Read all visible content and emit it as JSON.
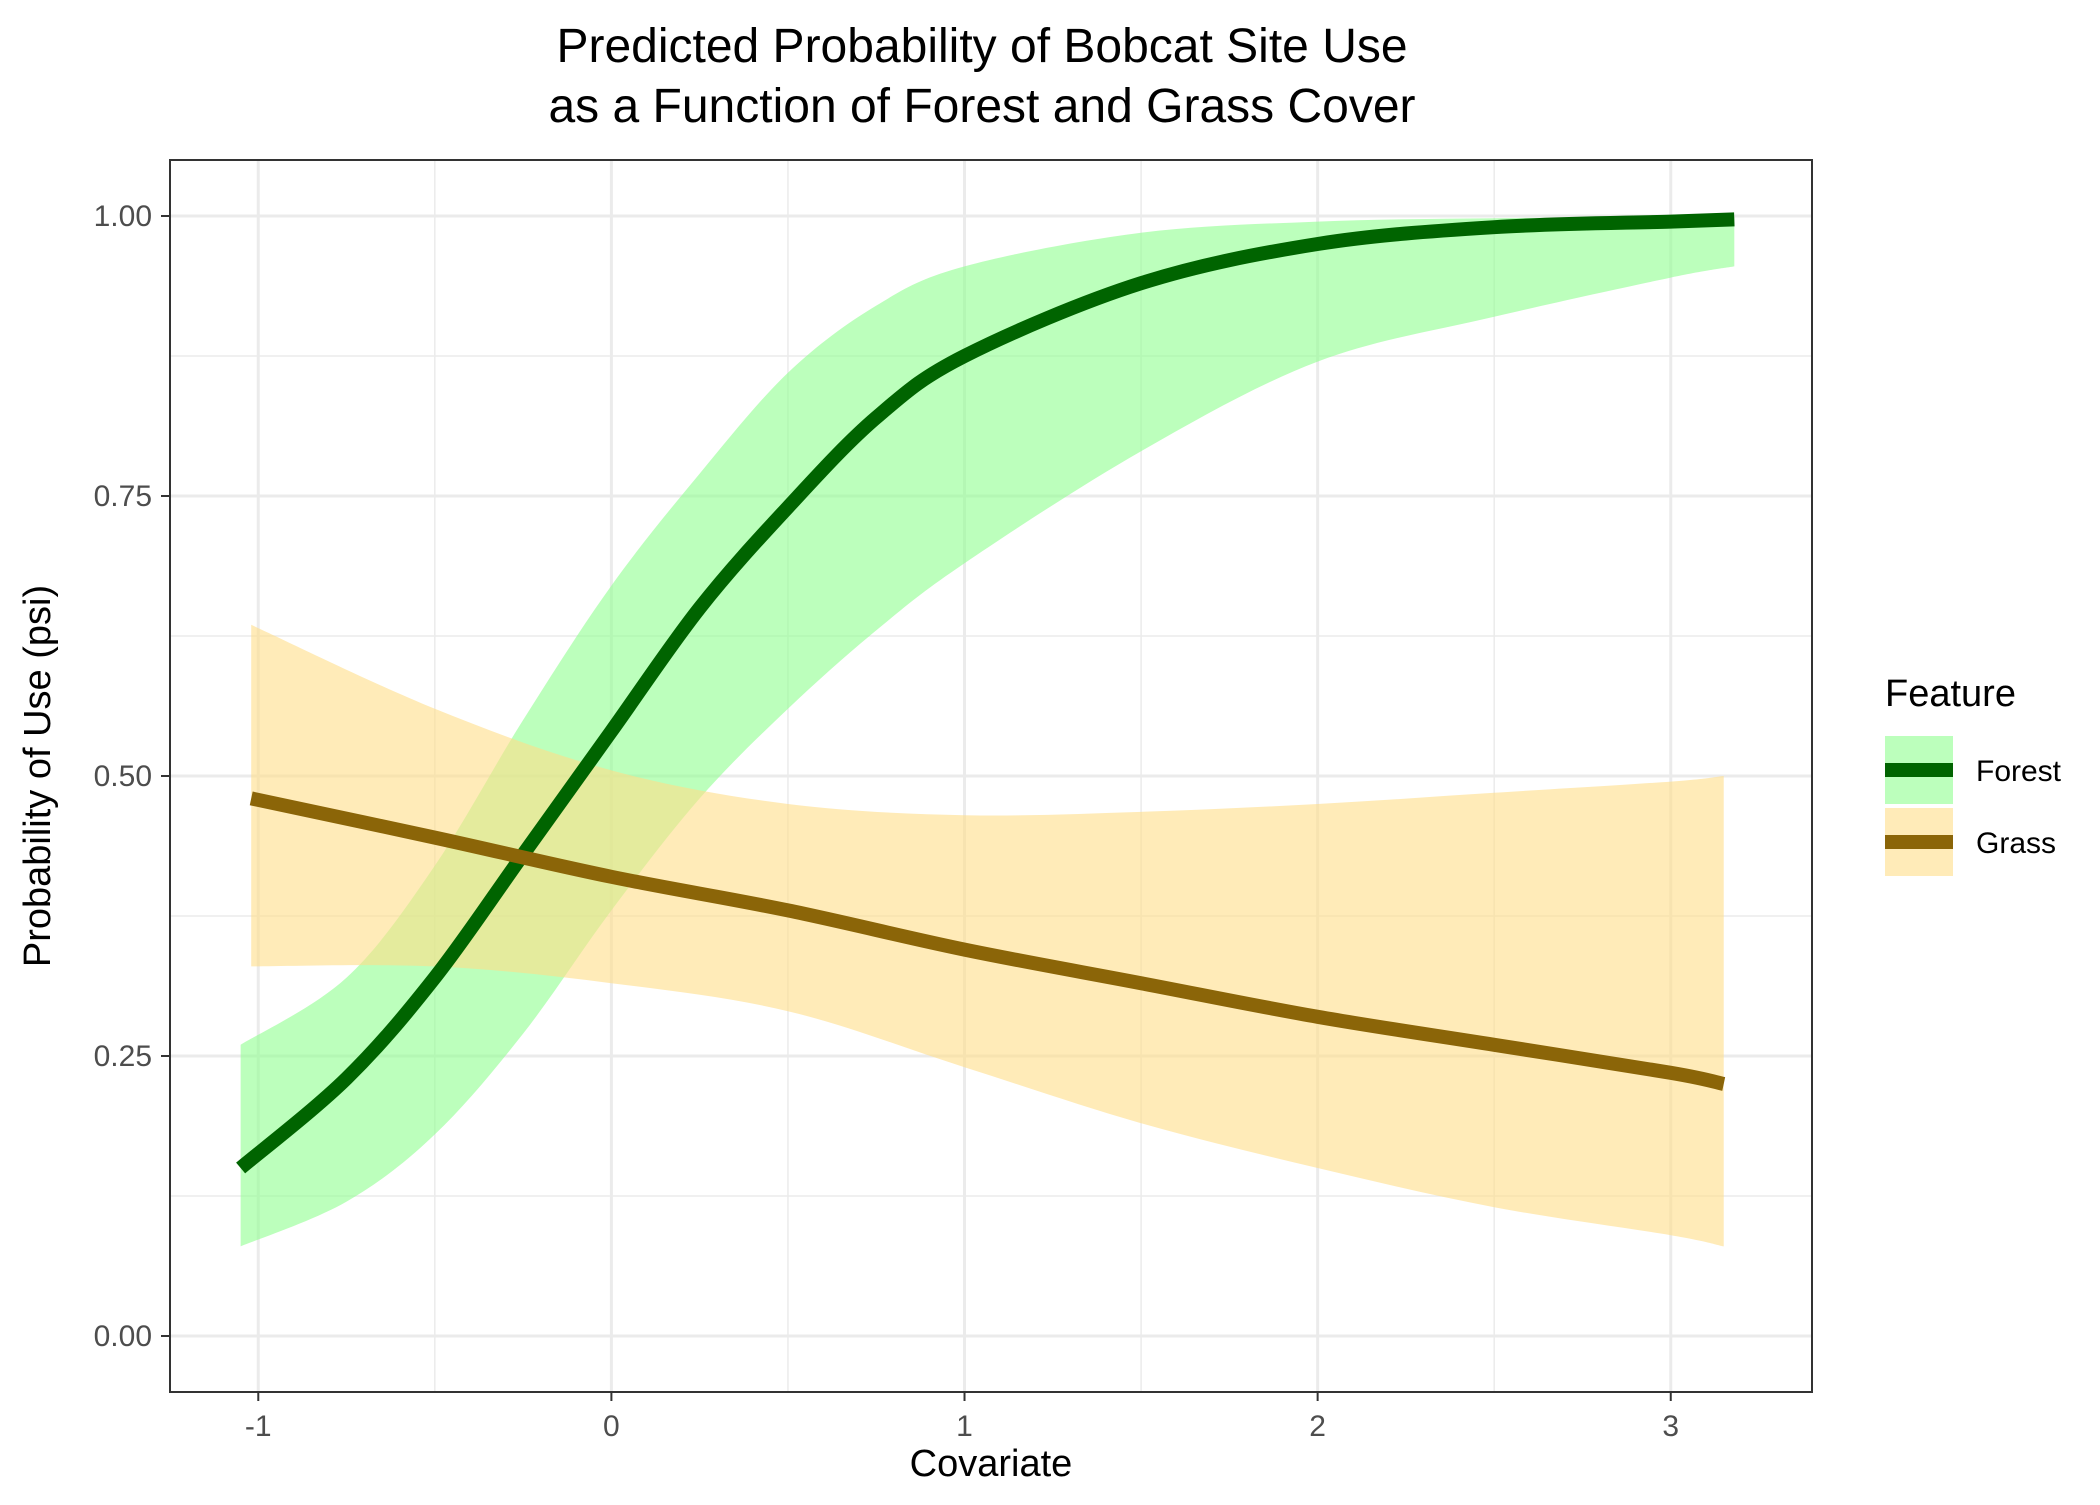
{
  "chart_data": {
    "type": "line",
    "title_line1": "Predicted Probability of Bobcat Site Use",
    "title_line2": "as a Function of Forest and Grass Cover",
    "xlabel": "Covariate",
    "ylabel": "Probability of Use (psi)",
    "xlim": [
      -1.25,
      3.4
    ],
    "ylim": [
      -0.05,
      1.05
    ],
    "x_ticks": [
      -1,
      0,
      1,
      2,
      3
    ],
    "x_tick_labels": [
      "-1",
      "0",
      "1",
      "2",
      "3"
    ],
    "y_ticks": [
      0,
      0.25,
      0.5,
      0.75,
      1.0
    ],
    "y_tick_labels": [
      "0.00",
      "0.25",
      "0.50",
      "0.75",
      "1.00"
    ],
    "grid": true,
    "legend": {
      "title": "Feature",
      "position": "right",
      "items": [
        "Forest",
        "Grass"
      ]
    },
    "series": [
      {
        "name": "Forest",
        "line_color": "#006400",
        "ribbon_color": "#90ff90",
        "x": [
          -1.05,
          -0.75,
          -0.5,
          -0.25,
          0.0,
          0.25,
          0.5,
          0.75,
          1.0,
          1.5,
          2.0,
          2.5,
          3.0,
          3.18
        ],
        "y": [
          0.15,
          0.23,
          0.32,
          0.43,
          0.54,
          0.65,
          0.74,
          0.82,
          0.875,
          0.94,
          0.975,
          0.99,
          0.995,
          0.997
        ],
        "lower": [
          0.08,
          0.12,
          0.18,
          0.27,
          0.38,
          0.48,
          0.56,
          0.63,
          0.69,
          0.79,
          0.87,
          0.91,
          0.945,
          0.955
        ],
        "upper": [
          0.26,
          0.32,
          0.42,
          0.55,
          0.67,
          0.77,
          0.86,
          0.92,
          0.955,
          0.985,
          0.995,
          0.998,
          0.999,
          0.999
        ]
      },
      {
        "name": "Grass",
        "line_color": "#8b6508",
        "ribbon_color": "#ffdd88",
        "x": [
          -1.02,
          -0.5,
          0.0,
          0.5,
          1.0,
          1.5,
          2.0,
          2.5,
          3.0,
          3.15
        ],
        "y": [
          0.48,
          0.445,
          0.41,
          0.38,
          0.345,
          0.315,
          0.285,
          0.26,
          0.235,
          0.225
        ],
        "lower": [
          0.33,
          0.33,
          0.315,
          0.29,
          0.24,
          0.19,
          0.15,
          0.115,
          0.09,
          0.08
        ],
        "upper": [
          0.635,
          0.56,
          0.505,
          0.475,
          0.465,
          0.468,
          0.475,
          0.485,
          0.495,
          0.5
        ]
      }
    ]
  }
}
